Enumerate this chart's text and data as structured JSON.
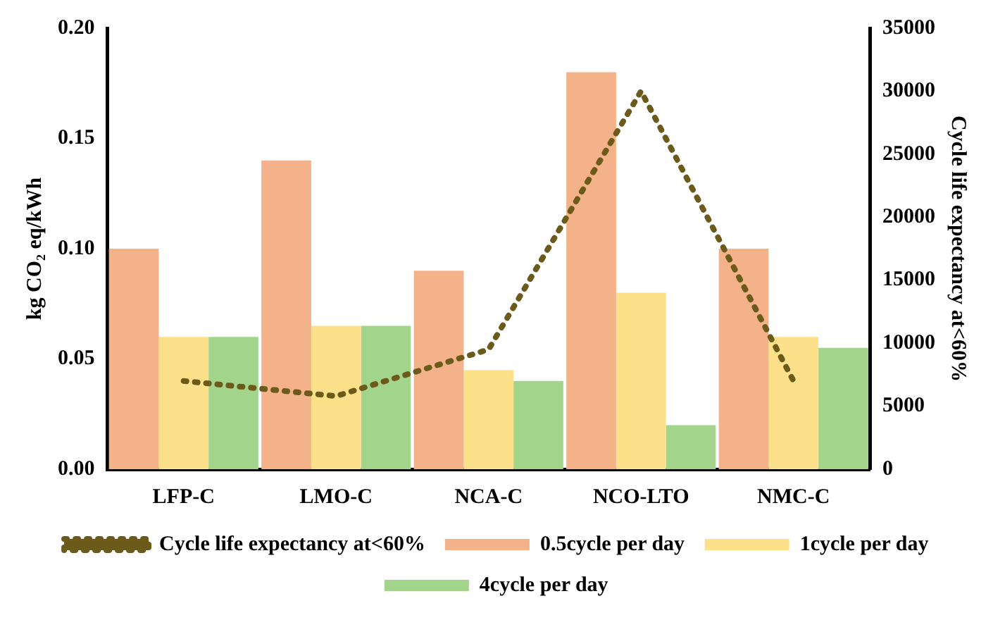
{
  "chart_data": {
    "type": "bar",
    "categories": [
      "LFP-C",
      "LMO-C",
      "NCA-C",
      "NCO-LTO",
      "NMC-C"
    ],
    "ylabel": "kg CO₂ eq/kWh",
    "y2label": "Cycle life expectancy at<60%",
    "ylim": [
      0,
      0.2
    ],
    "yticks": [
      {
        "value": 0,
        "label": "0.00"
      },
      {
        "value": 0.05,
        "label": "0.05"
      },
      {
        "value": 0.1,
        "label": "0.10"
      },
      {
        "value": 0.15,
        "label": "0.15"
      },
      {
        "value": 0.2,
        "label": "0.20"
      }
    ],
    "y2lim": [
      0,
      35000
    ],
    "y2ticks": [
      0,
      5000,
      10000,
      15000,
      20000,
      25000,
      30000,
      35000
    ],
    "grid": false,
    "legend": "bottom",
    "series": [
      {
        "name": "0.5cycle per day",
        "color": "#f4b28a",
        "values": [
          0.1,
          0.14,
          0.09,
          0.18,
          0.1
        ]
      },
      {
        "name": "1cycle per day",
        "color": "#fde08a",
        "values": [
          0.06,
          0.065,
          0.045,
          0.08,
          0.06
        ]
      },
      {
        "name": "4cycle per day",
        "color": "#a3d48c",
        "values": [
          0.06,
          0.065,
          0.04,
          0.02,
          0.055
        ]
      },
      {
        "name": "Cycle life expectancy at<60%",
        "type": "line",
        "axis": "y2",
        "color": "#6b5a1a",
        "line_style": "dotted",
        "marker": "none",
        "values": [
          7000,
          5800,
          9500,
          30000,
          7000
        ]
      }
    ]
  }
}
